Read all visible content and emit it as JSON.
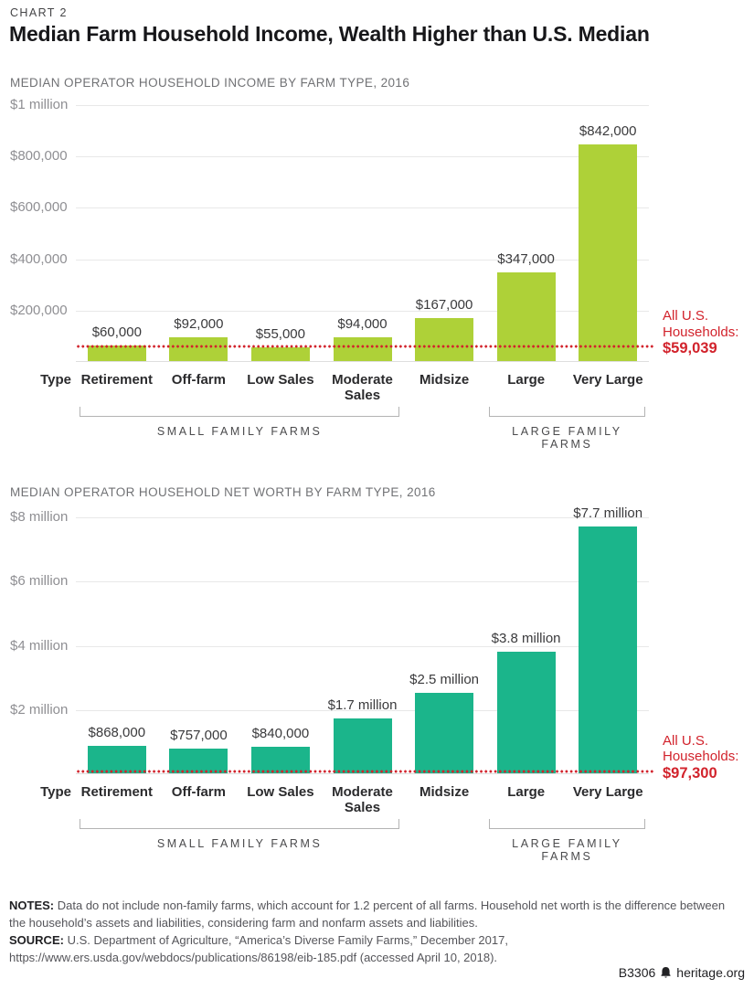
{
  "page": {
    "kicker": "CHART 2",
    "title": "Median Farm Household Income, Wealth Higher than U.S. Median"
  },
  "axis": {
    "type_header": "Type"
  },
  "categories": [
    "Retirement",
    "Off-farm",
    "Low Sales",
    "Moderate Sales",
    "Midsize",
    "Large",
    "Very Large"
  ],
  "group_brackets": [
    {
      "label": "SMALL FAMILY FARMS",
      "from": 0,
      "to": 3
    },
    {
      "label": "LARGE FAMILY FARMS",
      "from": 5,
      "to": 6
    }
  ],
  "colors": {
    "income_bar": "#aed138",
    "net_worth_bar": "#1bb58b",
    "reference_red": "#d2232c",
    "gridline": "#e8e8e8"
  },
  "chart_data": [
    {
      "type": "bar",
      "title": "MEDIAN OPERATOR HOUSEHOLD INCOME BY FARM TYPE, 2016",
      "categories": [
        "Retirement",
        "Off-farm",
        "Low Sales",
        "Moderate Sales",
        "Midsize",
        "Large",
        "Very Large"
      ],
      "values": [
        60000,
        92000,
        55000,
        94000,
        167000,
        347000,
        842000
      ],
      "value_labels": [
        "$60,000",
        "$92,000",
        "$55,000",
        "$94,000",
        "$167,000",
        "$347,000",
        "$842,000"
      ],
      "ylim": [
        0,
        1000000
      ],
      "yticks": [
        {
          "value": 200000,
          "label": "$200,000"
        },
        {
          "value": 400000,
          "label": "$400,000"
        },
        {
          "value": 600000,
          "label": "$600,000"
        },
        {
          "value": 800000,
          "label": "$800,000"
        },
        {
          "value": 1000000,
          "label": "$1 million"
        }
      ],
      "grid": true,
      "legend": "none",
      "bar_color": "#aed138",
      "reference_line": {
        "value": 59039,
        "label_lines": [
          "All U.S.",
          "Households:"
        ],
        "value_label": "$59,039",
        "color": "#d2232c"
      }
    },
    {
      "type": "bar",
      "title": "MEDIAN OPERATOR HOUSEHOLD NET WORTH BY FARM TYPE, 2016",
      "categories": [
        "Retirement",
        "Off-farm",
        "Low Sales",
        "Moderate Sales",
        "Midsize",
        "Large",
        "Very Large"
      ],
      "values": [
        868000,
        757000,
        840000,
        1700000,
        2500000,
        3800000,
        7700000
      ],
      "value_labels": [
        "$868,000",
        "$757,000",
        "$840,000",
        "$1.7 million",
        "$2.5 million",
        "$3.8 million",
        "$7.7 million"
      ],
      "ylim": [
        0,
        8000000
      ],
      "yticks": [
        {
          "value": 2000000,
          "label": "$2 million"
        },
        {
          "value": 4000000,
          "label": "$4 million"
        },
        {
          "value": 6000000,
          "label": "$6 million"
        },
        {
          "value": 8000000,
          "label": "$8 million"
        }
      ],
      "grid": true,
      "legend": "none",
      "bar_color": "#1bb58b",
      "reference_line": {
        "value": 97300,
        "label_lines": [
          "All U.S.",
          "Households:"
        ],
        "value_label": "$97,300",
        "color": "#d2232c"
      }
    }
  ],
  "notes": {
    "notes_label": "NOTES:",
    "notes_text": "Data do not include non-family farms, which account for 1.2 percent of all farms. Household net worth is the difference between the household’s assets and liabilities, considering farm and nonfarm assets and liabilities.",
    "source_label": "SOURCE:",
    "source_text": "U.S. Department of Agriculture, “America’s Diverse Family Farms,” December 2017, https://www.ers.usda.gov/webdocs/publications/86198/eib-185.pdf (accessed April 10, 2018)."
  },
  "footer": {
    "doc_id": "B3306",
    "site": "heritage.org"
  }
}
